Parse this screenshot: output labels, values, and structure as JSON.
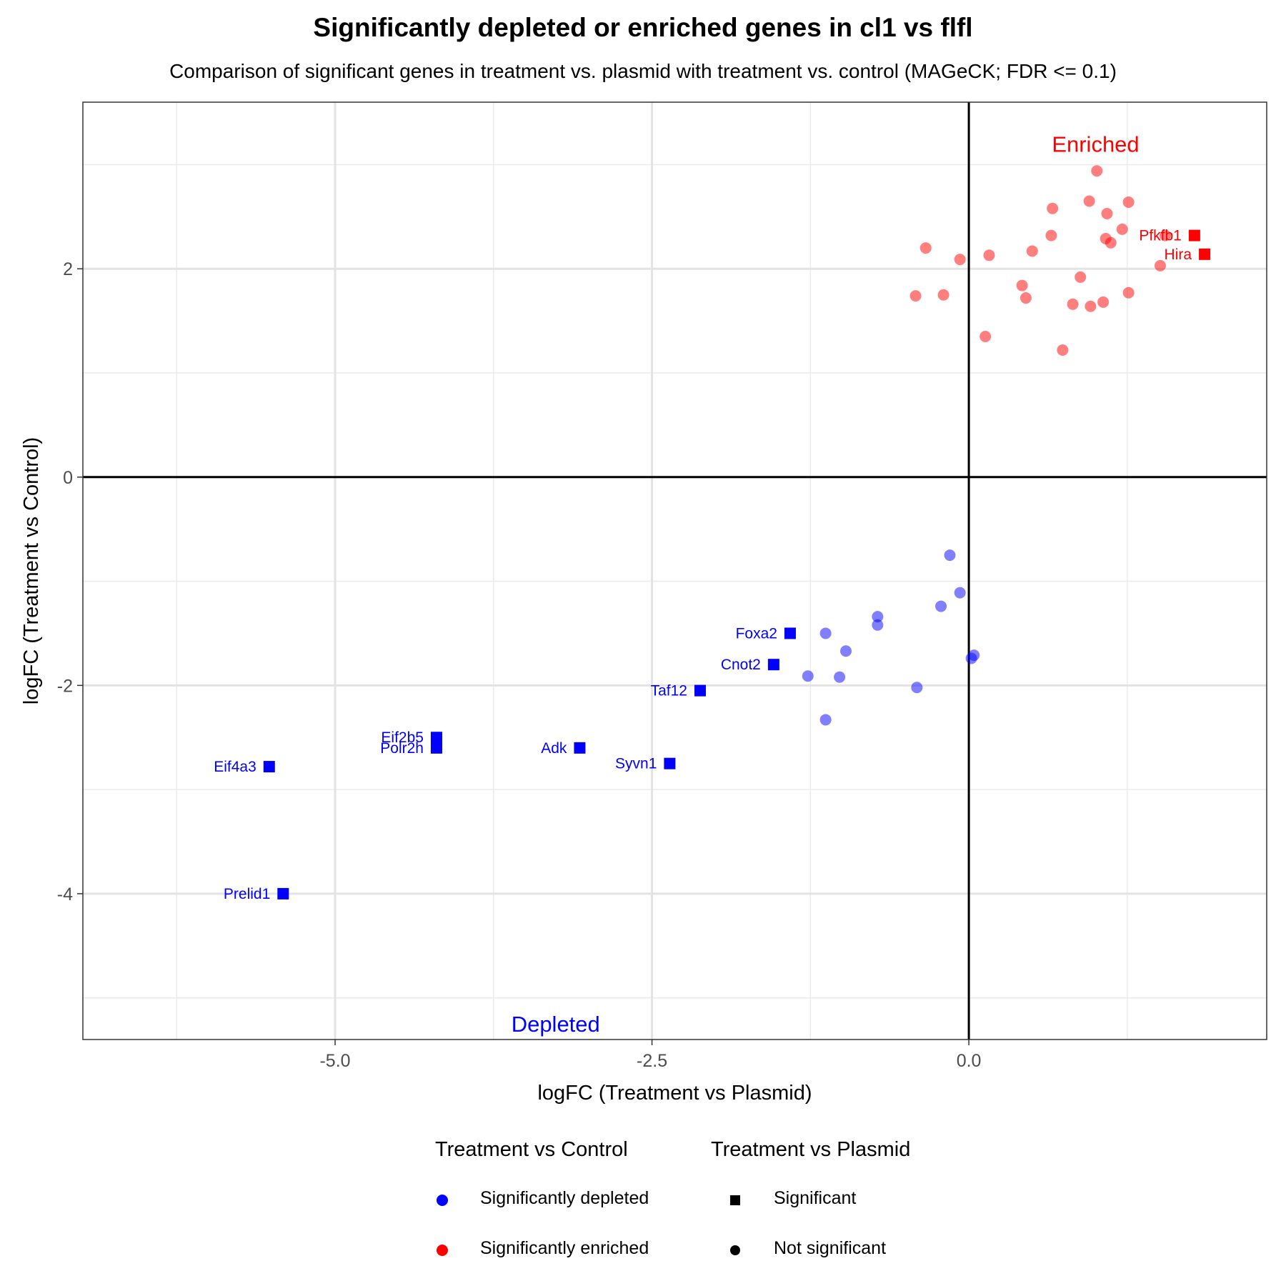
{
  "chart_data": {
    "type": "scatter",
    "title": "Significantly depleted or enriched genes in cl1 vs flfl",
    "subtitle": "Comparison of significant genes in treatment vs. plasmid with treatment vs. control (MAGeCK; FDR <= 0.1)",
    "xlabel": "logFC (Treatment vs Plasmid)",
    "ylabel": "logFC (Treatment vs Control)",
    "xlim": [
      -6.99,
      2.35
    ],
    "ylim": [
      -5.4,
      3.6
    ],
    "x_ticks": [
      -5.0,
      -2.5,
      0.0
    ],
    "x_tick_labels": [
      "-5.0",
      "-2.5",
      "0.0"
    ],
    "y_ticks": [
      -4,
      -2,
      0,
      2
    ],
    "y_tick_labels": [
      "-4",
      "-2",
      "0",
      "2"
    ],
    "grid": true,
    "colors": {
      "depleted": "#0000ff",
      "enriched": "#ff0000",
      "depleted_faint": "#8080ff",
      "enriched_faint": "#ff7f7f"
    },
    "region_labels": [
      {
        "text": "Enriched",
        "x": 1.0,
        "y": 3.2,
        "color": "#ff0000"
      },
      {
        "text": "Depleted",
        "x": -3.26,
        "y": -5.25,
        "color": "#0000ff"
      }
    ],
    "significant_genes": [
      {
        "gene": "Pfkfb1",
        "x": 1.78,
        "y": 2.32,
        "group": "enriched"
      },
      {
        "gene": "Hira",
        "x": 1.86,
        "y": 2.14,
        "group": "enriched"
      },
      {
        "gene": "Foxa2",
        "x": -1.41,
        "y": -1.5,
        "group": "depleted"
      },
      {
        "gene": "Cnot2",
        "x": -1.54,
        "y": -1.8,
        "group": "depleted"
      },
      {
        "gene": "Taf12",
        "x": -2.12,
        "y": -2.05,
        "group": "depleted"
      },
      {
        "gene": "Eif2b5",
        "x": -4.2,
        "y": -2.5,
        "group": "depleted"
      },
      {
        "gene": "Polr2h",
        "x": -4.2,
        "y": -2.6,
        "group": "depleted"
      },
      {
        "gene": "Adk",
        "x": -3.07,
        "y": -2.6,
        "group": "depleted"
      },
      {
        "gene": "Syvn1",
        "x": -2.36,
        "y": -2.75,
        "group": "depleted"
      },
      {
        "gene": "Eif4a3",
        "x": -5.52,
        "y": -2.78,
        "group": "depleted"
      },
      {
        "gene": "Prelid1",
        "x": -5.41,
        "y": -4.0,
        "group": "depleted"
      }
    ],
    "enriched_nonsignificant": [
      [
        1.01,
        2.94
      ],
      [
        0.95,
        2.65
      ],
      [
        1.26,
        2.64
      ],
      [
        0.66,
        2.58
      ],
      [
        1.09,
        2.53
      ],
      [
        1.21,
        2.38
      ],
      [
        1.55,
        2.32
      ],
      [
        0.65,
        2.32
      ],
      [
        1.08,
        2.29
      ],
      [
        1.12,
        2.25
      ],
      [
        -0.34,
        2.2
      ],
      [
        0.5,
        2.17
      ],
      [
        0.16,
        2.13
      ],
      [
        -0.07,
        2.09
      ],
      [
        1.51,
        2.03
      ],
      [
        0.88,
        1.92
      ],
      [
        0.42,
        1.84
      ],
      [
        1.26,
        1.77
      ],
      [
        -0.42,
        1.74
      ],
      [
        -0.2,
        1.75
      ],
      [
        0.45,
        1.72
      ],
      [
        1.06,
        1.68
      ],
      [
        0.82,
        1.66
      ],
      [
        0.96,
        1.64
      ],
      [
        0.13,
        1.35
      ],
      [
        0.74,
        1.22
      ]
    ],
    "depleted_nonsignificant": [
      [
        -0.15,
        -0.75
      ],
      [
        -0.07,
        -1.11
      ],
      [
        -0.22,
        -1.24
      ],
      [
        -0.72,
        -1.34
      ],
      [
        -0.72,
        -1.42
      ],
      [
        -1.13,
        -1.5
      ],
      [
        -0.97,
        -1.67
      ],
      [
        0.04,
        -1.71
      ],
      [
        0.02,
        -1.74
      ],
      [
        -1.27,
        -1.91
      ],
      [
        -1.02,
        -1.92
      ],
      [
        -0.41,
        -2.02
      ],
      [
        -1.13,
        -2.33
      ]
    ]
  },
  "legend": {
    "color_title": "Treatment vs Control",
    "color_items": [
      {
        "label": "Significantly depleted",
        "color": "#0000ff"
      },
      {
        "label": "Significantly enriched",
        "color": "#ff0000"
      }
    ],
    "shape_title": "Treatment vs Plasmid",
    "shape_items": [
      {
        "label": "Significant",
        "shape": "square"
      },
      {
        "label": "Not significant",
        "shape": "circle"
      }
    ]
  }
}
